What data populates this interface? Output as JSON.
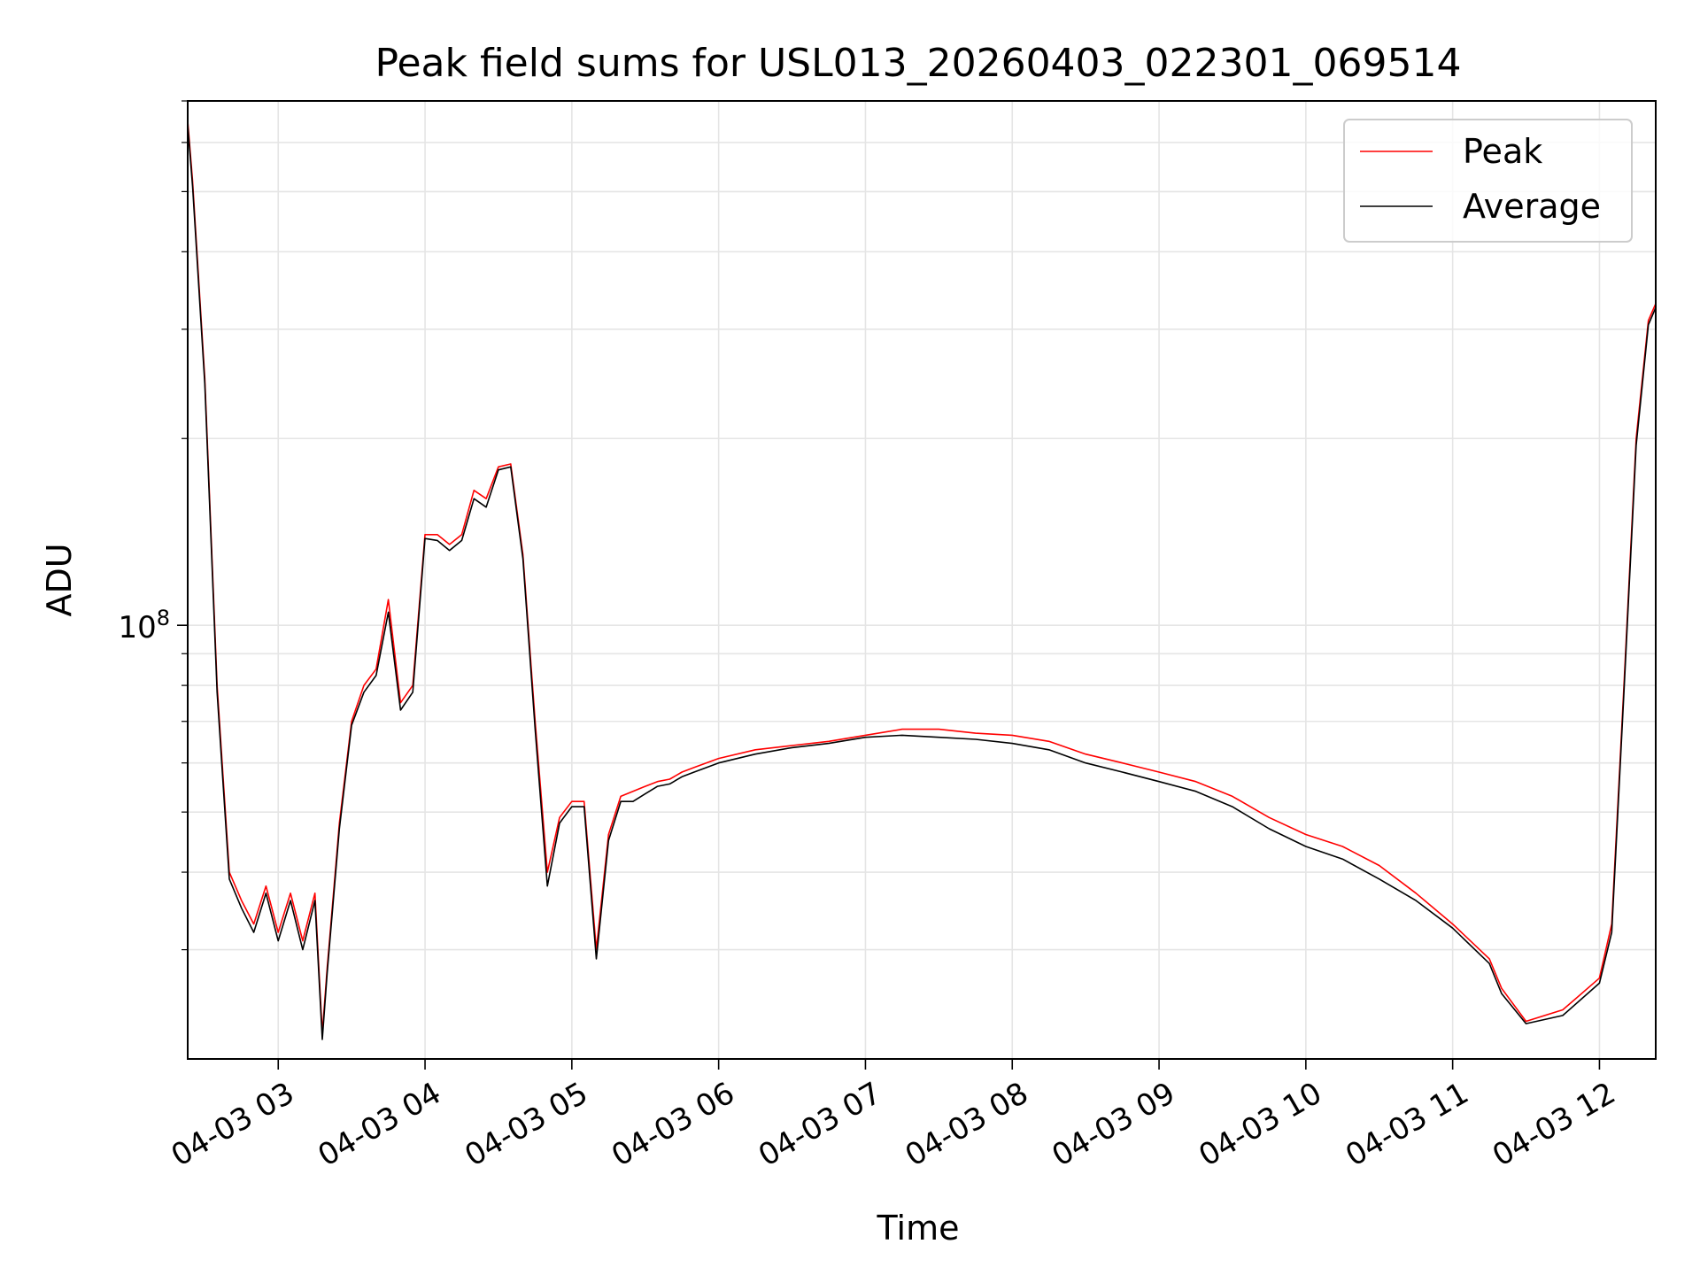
{
  "chart_data": {
    "type": "line",
    "title": "Peak field sums for USL013_20260403_022301_069514",
    "xlabel": "Time",
    "ylabel": "ADU",
    "y_scale": "log",
    "ylim": [
      20000000,
      700000000
    ],
    "xlim": [
      "2026-04-03 02:23",
      "2026-04-03 12:23"
    ],
    "grid": true,
    "legend_position": "top-right",
    "x_tick_labels": [
      "04-03 03",
      "04-03 04",
      "04-03 05",
      "04-03 06",
      "04-03 07",
      "04-03 08",
      "04-03 09",
      "04-03 10",
      "04-03 11",
      "04-03 12"
    ],
    "y_tick_label": {
      "base": "10",
      "exponent": "8",
      "value": 100000000
    },
    "x": [
      "02:23",
      "02:25",
      "02:30",
      "02:35",
      "02:40",
      "02:45",
      "02:50",
      "02:55",
      "03:00",
      "03:05",
      "03:10",
      "03:15",
      "03:18",
      "03:20",
      "03:25",
      "03:30",
      "03:35",
      "03:40",
      "03:45",
      "03:50",
      "03:55",
      "04:00",
      "04:05",
      "04:10",
      "04:15",
      "04:20",
      "04:25",
      "04:30",
      "04:35",
      "04:40",
      "04:45",
      "04:50",
      "04:55",
      "05:00",
      "05:05",
      "05:10",
      "05:15",
      "05:20",
      "05:25",
      "05:30",
      "05:35",
      "05:40",
      "05:45",
      "05:50",
      "06:00",
      "06:15",
      "06:30",
      "06:45",
      "07:00",
      "07:15",
      "07:30",
      "07:45",
      "08:00",
      "08:15",
      "08:30",
      "08:45",
      "09:00",
      "09:15",
      "09:30",
      "09:45",
      "10:00",
      "10:15",
      "10:30",
      "10:45",
      "11:00",
      "11:15",
      "11:20",
      "11:30",
      "11:45",
      "12:00",
      "12:05",
      "12:10",
      "12:15",
      "12:20",
      "12:23"
    ],
    "series": [
      {
        "name": "Peak",
        "color": "#ff0000",
        "values": [
          650000000,
          520000000,
          250000000,
          80000000,
          40000000,
          36000000,
          33000000,
          38000000,
          32000000,
          37000000,
          31000000,
          37000000,
          22000000,
          28000000,
          48000000,
          70000000,
          80000000,
          85000000,
          110000000,
          75000000,
          80000000,
          140000000,
          140000000,
          135000000,
          140000000,
          165000000,
          160000000,
          180000000,
          182000000,
          130000000,
          70000000,
          40000000,
          49000000,
          52000000,
          52000000,
          30000000,
          46000000,
          53000000,
          54000000,
          55000000,
          56000000,
          56500000,
          58000000,
          59000000,
          61000000,
          63000000,
          64000000,
          65000000,
          66500000,
          68000000,
          68000000,
          67000000,
          66500000,
          65000000,
          62000000,
          60000000,
          58000000,
          56000000,
          53000000,
          49000000,
          46000000,
          44000000,
          41000000,
          37000000,
          33000000,
          29000000,
          26000000,
          23000000,
          24000000,
          27000000,
          33000000,
          80000000,
          200000000,
          310000000,
          330000000
        ]
      },
      {
        "name": "Average",
        "color": "#000000",
        "values": [
          640000000,
          510000000,
          245000000,
          78000000,
          39000000,
          35000000,
          32000000,
          37000000,
          31000000,
          36000000,
          30000000,
          36000000,
          21500000,
          27500000,
          47000000,
          69000000,
          78000000,
          83000000,
          105000000,
          73000000,
          78000000,
          138000000,
          137000000,
          132000000,
          137000000,
          160000000,
          155000000,
          178000000,
          180000000,
          128000000,
          68000000,
          38000000,
          48000000,
          51000000,
          51000000,
          29000000,
          45000000,
          52000000,
          52000000,
          53500000,
          55000000,
          55500000,
          57000000,
          58000000,
          60000000,
          62000000,
          63500000,
          64500000,
          66000000,
          66500000,
          66000000,
          65500000,
          64500000,
          63000000,
          60000000,
          58000000,
          56000000,
          54000000,
          51000000,
          47000000,
          44000000,
          42000000,
          39000000,
          36000000,
          32500000,
          28500000,
          25500000,
          22800000,
          23500000,
          26500000,
          32000000,
          78000000,
          195000000,
          305000000,
          325000000
        ]
      }
    ]
  }
}
